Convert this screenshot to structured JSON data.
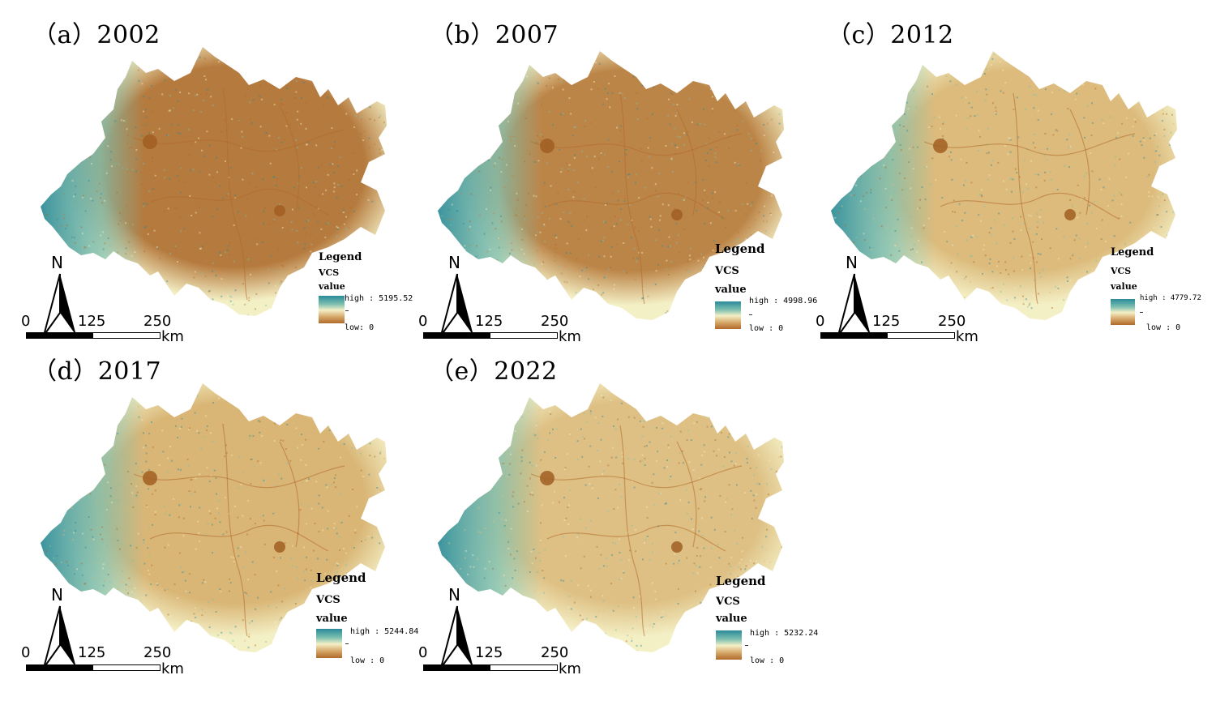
{
  "colors": {
    "ramp_high": "#2a8a9a",
    "ramp_mid": "#f4f0c6",
    "ramp_low": "#b06a2a",
    "scale_fill": "#000000"
  },
  "common": {
    "north_label": "N",
    "scale_ticks": [
      "0",
      "125",
      "250"
    ],
    "scale_unit": "km",
    "legend_title": "Legend",
    "legend_layer": "VCS",
    "legend_field": "value"
  },
  "panels": [
    {
      "title": "（a）2002",
      "legend_high": "high : 5195.52",
      "legend_low": "low: 0",
      "tone": "#b57a3e"
    },
    {
      "title": "（b）2007",
      "legend_high": "high : 4998.96",
      "legend_low": "low : 0",
      "tone": "#bc8548"
    },
    {
      "title": "（c）2012",
      "legend_high": "high : 4779.72",
      "legend_low": "low : 0",
      "tone": "#dcbb7c"
    },
    {
      "title": "（d）2017",
      "legend_high": "high : 5244.84",
      "legend_low": "low : 0",
      "tone": "#d9b676"
    },
    {
      "title": "（e）2022",
      "legend_high": "high : 5232.24",
      "legend_low": "low : 0",
      "tone": "#dec084"
    }
  ]
}
